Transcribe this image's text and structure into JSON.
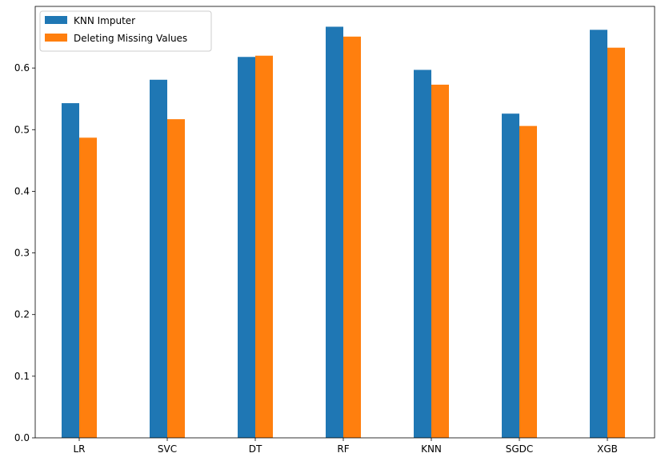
{
  "chart_data": {
    "type": "bar",
    "categories": [
      "LR",
      "SVC",
      "DT",
      "RF",
      "KNN",
      "SGDC",
      "XGB"
    ],
    "series": [
      {
        "name": "KNN Imputer",
        "color": "#1f77b4",
        "values": [
          0.543,
          0.581,
          0.618,
          0.667,
          0.597,
          0.526,
          0.662
        ]
      },
      {
        "name": "Deleting Missing Values",
        "color": "#ff7f0e",
        "values": [
          0.487,
          0.517,
          0.62,
          0.651,
          0.573,
          0.506,
          0.633
        ]
      }
    ],
    "yticks": [
      "0.0",
      "0.1",
      "0.2",
      "0.3",
      "0.4",
      "0.5",
      "0.6"
    ],
    "ylim": [
      0,
      0.7
    ],
    "grid": false,
    "legend": "top-left"
  }
}
